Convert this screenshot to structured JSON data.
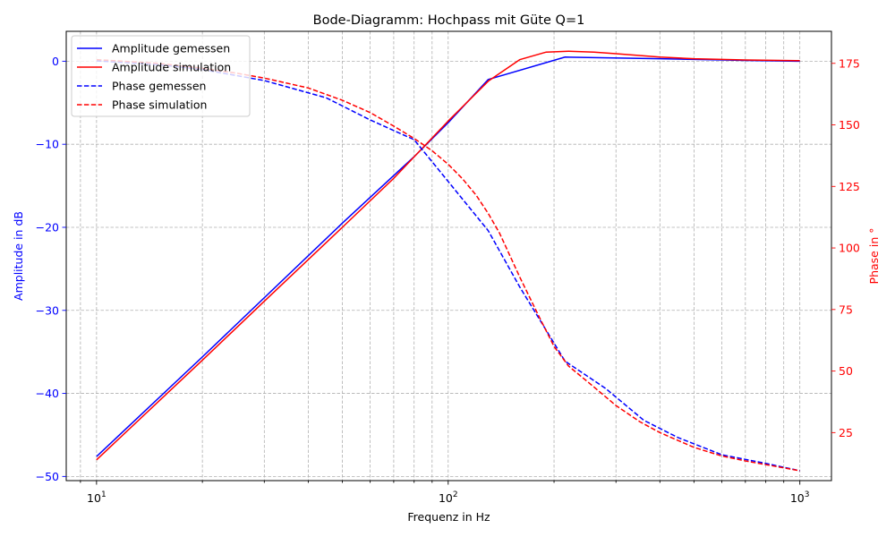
{
  "chart_data": {
    "type": "line",
    "title": "Bode-Diagramm: Hochpass mit Güte Q=1",
    "xlabel": "Frequenz in Hz",
    "ylabel_left": "Amplitude in dB",
    "ylabel_right": "Phase in °",
    "x_scale": "log",
    "xlim": [
      8.2,
      1230
    ],
    "ylim_left": [
      -50.5,
      3.6
    ],
    "ylim_right": [
      5.5,
      188
    ],
    "x_ticks": [
      {
        "value": 10,
        "exp": "1"
      },
      {
        "value": 100,
        "exp": "2"
      },
      {
        "value": 1000,
        "exp": "3"
      }
    ],
    "x_tick_base": "10",
    "y_ticks_left": [
      0,
      -10,
      -20,
      -30,
      -40,
      -50
    ],
    "y_ticks_right": [
      25,
      50,
      75,
      100,
      125,
      150,
      175
    ],
    "grid": true,
    "legend_position": "top-left",
    "colors": {
      "left_axis": "#0000ff",
      "right_axis": "#ff0000"
    },
    "series": [
      {
        "name": "Amplitude gemessen",
        "axis": "left",
        "color": "#0000ff",
        "dash": "solid",
        "x": [
          10,
          20,
          50,
          80,
          100,
          130,
          215,
          400,
          700,
          1000
        ],
        "y": [
          -47.6,
          -35.6,
          -19.5,
          -11.5,
          -7.4,
          -2.2,
          0.5,
          0.3,
          0.1,
          0.0
        ]
      },
      {
        "name": "Amplitude simulation",
        "axis": "left",
        "color": "#ff0000",
        "dash": "solid",
        "x": [
          10,
          20,
          30,
          50,
          70,
          100,
          130,
          160,
          190,
          220,
          260,
          300,
          400,
          500,
          700,
          1000
        ],
        "y": [
          -48.0,
          -36.0,
          -28.9,
          -20.0,
          -14.1,
          -7.2,
          -2.4,
          0.2,
          1.1,
          1.2,
          1.1,
          0.9,
          0.5,
          0.3,
          0.15,
          0.07
        ]
      },
      {
        "name": "Phase gemessen",
        "axis": "right",
        "color": "#0000ff",
        "dash": "dashed",
        "x": [
          10,
          15,
          20,
          30,
          45,
          60,
          80,
          100,
          130,
          160,
          215,
          280,
          360,
          450,
          600,
          800,
          1000
        ],
        "y": [
          176,
          174.5,
          172.5,
          168,
          161,
          152,
          144,
          127,
          107,
          84,
          54,
          43,
          30,
          23,
          16,
          12.5,
          9.5
        ]
      },
      {
        "name": "Phase simulation",
        "axis": "right",
        "color": "#ff0000",
        "dash": "dashed",
        "x": [
          10,
          15,
          20,
          25,
          30,
          40,
          50,
          60,
          70,
          80,
          90,
          100,
          110,
          120,
          130,
          140,
          160,
          180,
          200,
          220,
          250,
          300,
          350,
          400,
          500,
          600,
          700,
          800,
          1000
        ],
        "y": [
          176.5,
          175,
          173,
          171,
          169,
          165,
          160,
          155,
          149.5,
          144.5,
          139.5,
          134,
          128,
          121.5,
          114,
          106,
          88,
          73,
          60,
          52,
          45.5,
          36,
          29.5,
          25,
          19,
          15.5,
          13.5,
          12,
          9.5
        ]
      }
    ]
  }
}
